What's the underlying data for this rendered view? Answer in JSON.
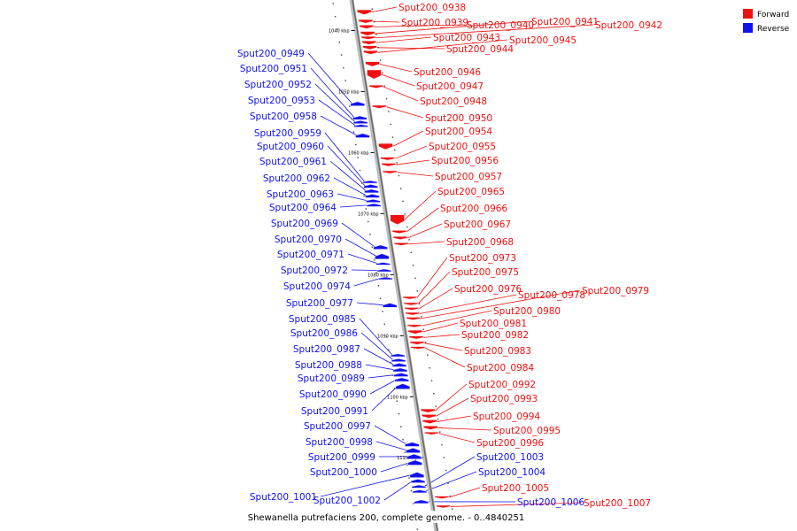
{
  "title": "Shewanella putrefaciens 200, complete genome. - 0..4840251",
  "legend": [
    {
      "label": "Forward",
      "color": "#ee1111"
    },
    {
      "label": "Reverse",
      "color": "#1111ee"
    }
  ],
  "colors": {
    "forward": "#ee1111",
    "reverse": "#1111ee",
    "axis": "#888888"
  },
  "ticks": [
    {
      "label": "1040 kbp",
      "kbp": 1040
    },
    {
      "label": "1050 kbp",
      "kbp": 1050
    },
    {
      "label": "1060 kbp",
      "kbp": 1060
    },
    {
      "label": "1070 kbp",
      "kbp": 1070
    },
    {
      "label": "1080 kbp",
      "kbp": 1080
    },
    {
      "label": "1090 kbp",
      "kbp": 1090
    },
    {
      "label": "1100 kbp",
      "kbp": 1100
    },
    {
      "label": "1110 kbp",
      "kbp": 1110
    },
    {
      "label": "1120 kbp",
      "kbp": 1120
    }
  ],
  "forward_genes": [
    {
      "name": "Sput200_0938",
      "pos": 1037.0,
      "len": 0.8
    },
    {
      "name": "Sput200_0939",
      "pos": 1038.5,
      "len": 0.6
    },
    {
      "name": "Sput200_0940",
      "pos": 1039.4,
      "len": 0.6
    },
    {
      "name": "Sput200_0941",
      "pos": 1040.5,
      "len": 0.7
    },
    {
      "name": "Sput200_0942",
      "pos": 1041.2,
      "len": 0.5
    },
    {
      "name": "Sput200_0943",
      "pos": 1042.0,
      "len": 0.6
    },
    {
      "name": "Sput200_0944",
      "pos": 1042.8,
      "len": 0.6
    },
    {
      "name": "Sput200_0945",
      "pos": 1043.6,
      "len": 0.6
    },
    {
      "name": "Sput200_0946",
      "pos": 1045.5,
      "len": 0.8
    },
    {
      "name": "Sput200_0947",
      "pos": 1047.2,
      "len": 1.5
    },
    {
      "name": "Sput200_0948",
      "pos": 1049.2,
      "len": 0.5
    },
    {
      "name": "Sput200_0950",
      "pos": 1052.5,
      "len": 0.5
    },
    {
      "name": "Sput200_0954",
      "pos": 1059.0,
      "len": 1.0
    },
    {
      "name": "Sput200_0955",
      "pos": 1061.0,
      "len": 0.5
    },
    {
      "name": "Sput200_0956",
      "pos": 1062.0,
      "len": 0.5
    },
    {
      "name": "Sput200_0957",
      "pos": 1063.2,
      "len": 0.4
    },
    {
      "name": "Sput200_0965",
      "pos": 1071.0,
      "len": 1.6
    },
    {
      "name": "Sput200_0966",
      "pos": 1073.0,
      "len": 0.5
    },
    {
      "name": "Sput200_0967",
      "pos": 1074.0,
      "len": 0.5
    },
    {
      "name": "Sput200_0968",
      "pos": 1075.0,
      "len": 0.4
    },
    {
      "name": "Sput200_0973",
      "pos": 1083.8,
      "len": 0.3
    },
    {
      "name": "Sput200_0975",
      "pos": 1084.8,
      "len": 0.4
    },
    {
      "name": "Sput200_0976",
      "pos": 1085.6,
      "len": 0.4
    },
    {
      "name": "Sput200_0978",
      "pos": 1086.4,
      "len": 0.4
    },
    {
      "name": "Sput200_0979",
      "pos": 1087.2,
      "len": 0.3
    },
    {
      "name": "Sput200_0980",
      "pos": 1088.4,
      "len": 0.4
    },
    {
      "name": "Sput200_0981",
      "pos": 1089.4,
      "len": 0.6
    },
    {
      "name": "Sput200_0982",
      "pos": 1090.3,
      "len": 0.5
    },
    {
      "name": "Sput200_0983",
      "pos": 1091.2,
      "len": 0.5
    },
    {
      "name": "Sput200_0984",
      "pos": 1092.0,
      "len": 0.4
    },
    {
      "name": "Sput200_0992",
      "pos": 1102.3,
      "len": 0.6
    },
    {
      "name": "Sput200_0993",
      "pos": 1103.2,
      "len": 0.6
    },
    {
      "name": "Sput200_0994",
      "pos": 1104.1,
      "len": 0.6
    },
    {
      "name": "Sput200_0995",
      "pos": 1105.1,
      "len": 0.6
    },
    {
      "name": "Sput200_0996",
      "pos": 1106.0,
      "len": 0.4
    },
    {
      "name": "Sput200_1005",
      "pos": 1116.5,
      "len": 0.2
    },
    {
      "name": "Sput200_1007",
      "pos": 1118.0,
      "len": 0.4
    }
  ],
  "reverse_genes": [
    {
      "name": "Sput200_0949",
      "pos": 1052.0,
      "len": 0.7
    },
    {
      "name": "Sput200_0951",
      "pos": 1054.3,
      "len": 0.6
    },
    {
      "name": "Sput200_0952",
      "pos": 1055.0,
      "len": 0.5
    },
    {
      "name": "Sput200_0953",
      "pos": 1055.6,
      "len": 0.4
    },
    {
      "name": "Sput200_0958",
      "pos": 1057.2,
      "len": 0.7
    },
    {
      "name": "Sput200_0959",
      "pos": 1064.8,
      "len": 0.4
    },
    {
      "name": "Sput200_0960",
      "pos": 1065.5,
      "len": 0.6
    },
    {
      "name": "Sput200_0961",
      "pos": 1066.3,
      "len": 0.6
    },
    {
      "name": "Sput200_0962",
      "pos": 1067.1,
      "len": 0.6
    },
    {
      "name": "Sput200_0963",
      "pos": 1067.9,
      "len": 0.5
    },
    {
      "name": "Sput200_0964",
      "pos": 1068.6,
      "len": 0.5
    },
    {
      "name": "Sput200_0969",
      "pos": 1075.5,
      "len": 0.7
    },
    {
      "name": "Sput200_0970",
      "pos": 1077.0,
      "len": 0.9
    },
    {
      "name": "Sput200_0971",
      "pos": 1078.2,
      "len": 0.4
    },
    {
      "name": "Sput200_0972",
      "pos": 1079.3,
      "len": 0.4
    },
    {
      "name": "Sput200_0974",
      "pos": 1080.6,
      "len": 0.3
    },
    {
      "name": "Sput200_0977",
      "pos": 1085.0,
      "len": 0.7
    },
    {
      "name": "Sput200_0985",
      "pos": 1093.2,
      "len": 0.5
    },
    {
      "name": "Sput200_0986",
      "pos": 1094.0,
      "len": 0.5
    },
    {
      "name": "Sput200_0987",
      "pos": 1094.8,
      "len": 0.6
    },
    {
      "name": "Sput200_0988",
      "pos": 1095.6,
      "len": 0.6
    },
    {
      "name": "Sput200_0989",
      "pos": 1096.4,
      "len": 0.6
    },
    {
      "name": "Sput200_0990",
      "pos": 1097.2,
      "len": 0.6
    },
    {
      "name": "Sput200_0991",
      "pos": 1098.3,
      "len": 0.9
    },
    {
      "name": "Sput200_0997",
      "pos": 1107.8,
      "len": 0.7
    },
    {
      "name": "Sput200_0998",
      "pos": 1108.8,
      "len": 0.8
    },
    {
      "name": "Sput200_0999",
      "pos": 1109.8,
      "len": 0.8
    },
    {
      "name": "Sput200_1000",
      "pos": 1110.8,
      "len": 0.8
    },
    {
      "name": "Sput200_1001",
      "pos": 1112.8,
      "len": 0.9
    },
    {
      "name": "Sput200_1002",
      "pos": 1113.8,
      "len": 0.6
    },
    {
      "name": "Sput200_1003",
      "pos": 1114.7,
      "len": 0.5
    },
    {
      "name": "Sput200_1004",
      "pos": 1115.5,
      "len": 0.5
    },
    {
      "name": "Sput200_1006",
      "pos": 1117.2,
      "len": 0.6
    }
  ]
}
